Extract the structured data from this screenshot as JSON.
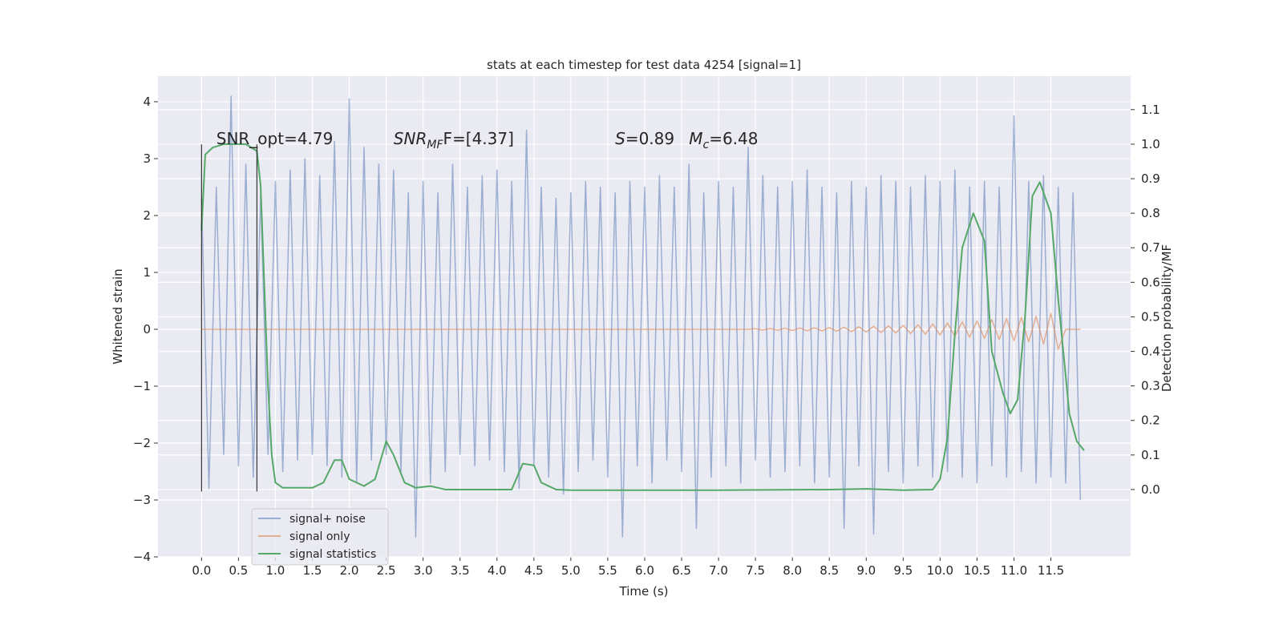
{
  "chart_data": {
    "type": "line",
    "title": "stats at each timestep for test data 4254 [signal=1]",
    "xlabel": "Time (s)",
    "ylabel": "Whitened strain",
    "y2label": "Detection probability/MF",
    "grid": true,
    "legend_loc": "lower left",
    "xlim": [
      -0.59,
      12.58
    ],
    "ylim": [
      -4.0,
      4.45
    ],
    "y2lim": [
      -0.195,
      1.197
    ],
    "xticks": [
      {
        "value": 0,
        "label": "0.0"
      },
      {
        "value": 0.5,
        "label": "0.5"
      },
      {
        "value": 1,
        "label": "1.0"
      },
      {
        "value": 1.5,
        "label": "1.5"
      },
      {
        "value": 2,
        "label": "2.0"
      },
      {
        "value": 2.5,
        "label": "2.5"
      },
      {
        "value": 3,
        "label": "3.0"
      },
      {
        "value": 3.5,
        "label": "3.5"
      },
      {
        "value": 4,
        "label": "4.0"
      },
      {
        "value": 4.5,
        "label": "4.5"
      },
      {
        "value": 5,
        "label": "5.0"
      },
      {
        "value": 5.5,
        "label": "5.5"
      },
      {
        "value": 6,
        "label": "6.0"
      },
      {
        "value": 6.5,
        "label": "6.5"
      },
      {
        "value": 7,
        "label": "7.0"
      },
      {
        "value": 7.5,
        "label": "7.5"
      },
      {
        "value": 8,
        "label": "8.0"
      },
      {
        "value": 8.5,
        "label": "8.5"
      },
      {
        "value": 9,
        "label": "9.0"
      },
      {
        "value": 9.5,
        "label": "9.5"
      },
      {
        "value": 10,
        "label": "10.0"
      },
      {
        "value": 10.5,
        "label": "10.5"
      },
      {
        "value": 11,
        "label": "11.0"
      },
      {
        "value": 11.5,
        "label": "11.5"
      }
    ],
    "yticks": [
      {
        "value": -4,
        "label": "−4"
      },
      {
        "value": -3,
        "label": "−3"
      },
      {
        "value": -2,
        "label": "−2"
      },
      {
        "value": -1,
        "label": "−1"
      },
      0,
      1,
      2,
      3,
      4
    ],
    "y2ticks": [
      {
        "value": 0,
        "label": "0.0"
      },
      {
        "value": 0.1,
        "label": "0.1"
      },
      {
        "value": 0.2,
        "label": "0.2"
      },
      {
        "value": 0.3,
        "label": "0.3"
      },
      {
        "value": 0.4,
        "label": "0.4"
      },
      {
        "value": 0.5,
        "label": "0.5"
      },
      {
        "value": 0.6,
        "label": "0.6"
      },
      {
        "value": 0.7,
        "label": "0.7"
      },
      {
        "value": 0.8,
        "label": "0.8"
      },
      {
        "value": 0.9,
        "label": "0.9"
      },
      {
        "value": 1,
        "label": "1.0"
      },
      {
        "value": 1.1,
        "label": "1.1"
      }
    ],
    "x": [
      0,
      0.1,
      0.2,
      0.3,
      0.4,
      0.5,
      0.6,
      0.7,
      0.8,
      0.9,
      1,
      1.1,
      1.2,
      1.3,
      1.4,
      1.5,
      1.6,
      1.7,
      1.8,
      1.9,
      2,
      2.1,
      2.2,
      2.3,
      2.4,
      2.5,
      2.6,
      2.7,
      2.8,
      2.9,
      3,
      3.1,
      3.2,
      3.3,
      3.4,
      3.5,
      3.6,
      3.7,
      3.8,
      3.9,
      4,
      4.1,
      4.2,
      4.3,
      4.4,
      4.5,
      4.6,
      4.7,
      4.8,
      4.9,
      5,
      5.1,
      5.2,
      5.3,
      5.4,
      5.5,
      5.6,
      5.7,
      5.8,
      5.9,
      6,
      6.1,
      6.2,
      6.3,
      6.4,
      6.5,
      6.6,
      6.7,
      6.8,
      6.9,
      7,
      7.1,
      7.2,
      7.3,
      7.4,
      7.5,
      7.6,
      7.7,
      7.8,
      7.9,
      8,
      8.1,
      8.2,
      8.3,
      8.4,
      8.5,
      8.6,
      8.7,
      8.8,
      8.9,
      9,
      9.1,
      9.2,
      9.3,
      9.4,
      9.5,
      9.6,
      9.7,
      9.8,
      9.9,
      10,
      10.1,
      10.2,
      10.3,
      10.4,
      10.5,
      10.6,
      10.7,
      10.8,
      10.9,
      11,
      11.1,
      11.2,
      11.3,
      11.4,
      11.5,
      11.6,
      11.7,
      11.8,
      11.9
    ],
    "series": [
      {
        "name": "signal+ noise",
        "color": "#4c72b0",
        "opacity": 0.5,
        "values": [
          2.3,
          -2.8,
          2.5,
          -2.2,
          4.1,
          -2.4,
          2.9,
          -2.6,
          2.4,
          -2.2,
          2.6,
          -2.5,
          2.8,
          -2.3,
          3.0,
          -2.2,
          2.7,
          -2.4,
          3.3,
          -2.6,
          4.05,
          -2.7,
          3.2,
          -2.3,
          2.9,
          -2.2,
          2.8,
          -2.5,
          2.4,
          -3.65,
          2.6,
          -2.7,
          2.4,
          -2.5,
          2.9,
          -2.2,
          2.5,
          -2.4,
          2.7,
          -2.3,
          2.8,
          -2.5,
          2.6,
          -2.8,
          3.5,
          -2.4,
          2.5,
          -2.6,
          2.3,
          -2.9,
          2.4,
          -2.5,
          2.6,
          -2.3,
          2.5,
          -2.6,
          2.4,
          -3.65,
          2.6,
          -2.4,
          2.5,
          -2.7,
          2.7,
          -2.3,
          2.5,
          -2.5,
          2.9,
          -3.5,
          2.4,
          -2.6,
          2.6,
          -2.4,
          2.5,
          -2.7,
          3.2,
          -2.3,
          2.7,
          -2.6,
          2.5,
          -2.5,
          2.6,
          -2.4,
          2.8,
          -2.7,
          2.5,
          -2.6,
          2.4,
          -3.5,
          2.6,
          -2.4,
          2.5,
          -3.6,
          2.7,
          -2.5,
          2.6,
          -2.7,
          2.5,
          -2.4,
          2.7,
          -2.6,
          2.6,
          -2.5,
          2.8,
          -2.6,
          2.5,
          -2.7,
          2.6,
          -2.4,
          2.5,
          -2.6,
          3.75,
          -2.5,
          2.6,
          -2.7,
          2.7,
          -2.6,
          2.5,
          -2.7,
          2.4,
          -3.0
        ]
      },
      {
        "name": "signal only",
        "color": "#dd8452",
        "opacity": 0.6,
        "values": [
          0,
          0,
          0,
          0,
          0,
          0,
          0,
          0,
          0,
          0,
          0,
          0,
          0,
          0,
          0,
          0,
          0,
          0,
          0,
          0,
          0,
          0,
          0,
          0,
          0,
          0,
          0,
          0,
          0,
          0,
          0,
          0,
          0,
          0,
          0,
          0,
          0,
          0,
          0,
          0,
          0,
          0,
          0,
          0,
          0,
          0,
          0,
          0,
          0,
          0,
          0,
          0,
          0,
          0,
          0,
          0,
          0,
          0,
          0,
          0,
          0,
          0,
          0,
          0,
          0,
          0,
          0,
          0,
          0,
          0,
          0,
          0,
          0,
          0,
          0,
          0.01,
          -0.012,
          0.014,
          -0.016,
          0.018,
          -0.02,
          0.022,
          -0.024,
          0.026,
          -0.028,
          0.03,
          -0.033,
          0.036,
          -0.04,
          0.044,
          -0.048,
          0.052,
          -0.056,
          0.06,
          -0.065,
          0.07,
          -0.075,
          0.08,
          -0.086,
          0.092,
          -0.1,
          0.11,
          -0.12,
          0.13,
          -0.14,
          0.15,
          -0.16,
          0.17,
          -0.18,
          0.19,
          -0.2,
          0.21,
          -0.22,
          0.23,
          -0.26,
          0.28,
          -0.35,
          0,
          0,
          0
        ]
      },
      {
        "name": "signal statistics",
        "color": "#55a868",
        "axis": "y2",
        "x": [
          0,
          0.05,
          0.15,
          0.3,
          0.6,
          0.75,
          0.8,
          0.9,
          0.95,
          1.0,
          1.1,
          1.5,
          1.65,
          1.8,
          1.9,
          2.0,
          2.2,
          2.35,
          2.5,
          2.6,
          2.75,
          2.9,
          3.1,
          3.3,
          4.2,
          4.35,
          4.5,
          4.6,
          4.8,
          5.0,
          7.0,
          8.5,
          9.0,
          9.5,
          9.9,
          10.0,
          10.1,
          10.2,
          10.3,
          10.45,
          10.6,
          10.7,
          10.85,
          10.95,
          11.05,
          11.15,
          11.25,
          11.35,
          11.5,
          11.6,
          11.75,
          11.85,
          11.95
        ],
        "values": [
          0.75,
          0.97,
          0.99,
          1.0,
          1.0,
          0.98,
          0.88,
          0.3,
          0.1,
          0.02,
          0.005,
          0.005,
          0.02,
          0.085,
          0.085,
          0.03,
          0.01,
          0.03,
          0.14,
          0.1,
          0.02,
          0.005,
          0.01,
          0.0,
          0.0,
          0.075,
          0.07,
          0.02,
          0.0,
          -0.002,
          -0.002,
          0.0,
          0.002,
          -0.002,
          0.0,
          0.03,
          0.15,
          0.45,
          0.7,
          0.8,
          0.72,
          0.4,
          0.28,
          0.22,
          0.26,
          0.5,
          0.85,
          0.89,
          0.8,
          0.55,
          0.22,
          0.14,
          0.113
        ]
      }
    ],
    "vlines": [
      {
        "x": 0,
        "ymin": -2.85,
        "ymax": 3.25,
        "color": "#333333"
      },
      {
        "x": 0.75,
        "ymin": -2.85,
        "ymax": 3.25,
        "color": "#333333"
      }
    ],
    "annotations": [
      {
        "x": 0.2,
        "y": 3.25,
        "parts": [
          {
            "text": "SNR_opt=4.79"
          }
        ]
      },
      {
        "x": 2.6,
        "y": 3.25,
        "parts": [
          {
            "text": "SNR",
            "style": "italic"
          },
          {
            "text": "MF",
            "style": "sub"
          },
          {
            "text": "F=[4.37]"
          }
        ]
      },
      {
        "x": 5.6,
        "y": 3.25,
        "parts": [
          {
            "text": "S",
            "style": "italic"
          },
          {
            "text": "=0.89"
          }
        ]
      },
      {
        "x": 6.6,
        "y": 3.25,
        "parts": [
          {
            "text": "M",
            "style": "italic"
          },
          {
            "text": "c",
            "style": "sub"
          },
          {
            "text": "=6.48"
          }
        ]
      }
    ]
  }
}
